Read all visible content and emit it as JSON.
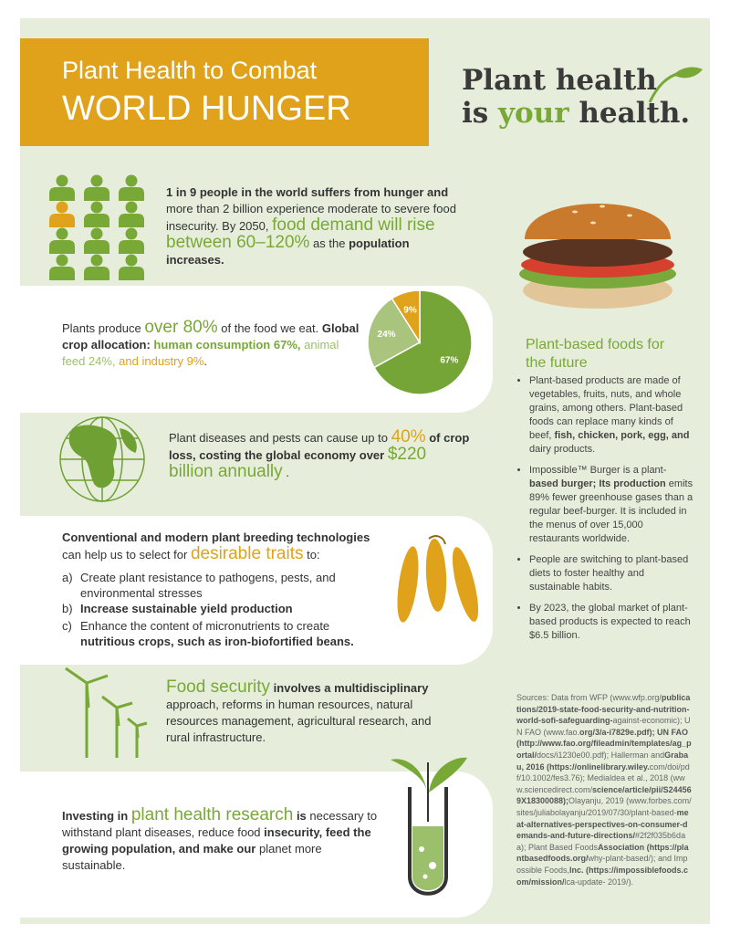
{
  "header": {
    "title_line1": "Plant Health to Combat",
    "title_line2": "WORLD HUNGER"
  },
  "logo": {
    "line1": "Plant health",
    "line2_start": "is ",
    "line2_highlight": "your",
    "line2_end": " health."
  },
  "hunger": [
    "1 in 9 people in the world suffers from hunger and",
    "more than 2 billion experience moderate to severe food insecurity. By 2050,",
    "food demand will rise between 60–120%",
    "as the",
    "population increases."
  ],
  "crops": {
    "text": [
      "Plants produce",
      "over 80%",
      "of the food we eat.",
      "Global crop allocation:",
      "human consumption 67%,",
      "animal feed 24%,",
      "and industry 9%",
      "."
    ],
    "pie": {
      "type": "pie",
      "values": [
        67,
        24,
        9
      ],
      "value_labels": [
        "67%",
        "24%",
        "9%"
      ],
      "colors": [
        "#76a537",
        "#a9c47d",
        "#e0a21b"
      ]
    }
  },
  "loss": [
    "Plant diseases and pests can cause up to",
    "40%",
    "of crop loss, costing the global economy over",
    "$220 billion annually",
    "."
  ],
  "breeding": {
    "intro": [
      "Conventional and modern plant breeding technologies",
      "can help us to select for",
      "desirable traits",
      "to:"
    ],
    "items": [
      {
        "marker": "a)",
        "parts": [
          "Create plant resistance to pathogens, pests, and environmental stresses"
        ]
      },
      {
        "marker": "b)",
        "parts": [
          "Increase sustainable yield production"
        ]
      },
      {
        "marker": "c)",
        "parts": [
          "Enhance the content of micronutrients to create",
          "nutritious crops, such as iron-biofortified beans."
        ]
      }
    ]
  },
  "security": [
    "Food security",
    "involves a multidisciplinary",
    "approach, reforms in human resources, natural resources management, agricultural research, and rural infrastructure."
  ],
  "research": [
    "Investing in",
    "plant health research",
    "is",
    "necessary to withstand plant diseases, reduce food",
    "insecurity, feed the growing population, and make our",
    "planet more sustainable."
  ],
  "sidebar": {
    "heading": "Plant-based foods for the future",
    "bullets": [
      [
        "Plant-based products are made of vegetables, fruits, nuts, and whole grains, among others. Plant-based foods can replace many kinds of beef,",
        "fish, chicken, pork, egg, and",
        "dairy products."
      ],
      [
        "Impossible™ Burger is a plant-",
        "based burger; Its production",
        "emits 89% fewer greenhouse gases than a regular beef-burger. It is included in the menus of over 15,000 restaurants worldwide."
      ],
      [
        "People are switching to plant-based diets to foster healthy and sustainable habits."
      ],
      [
        "By 2023, the global market of plant-based products is expected to reach $6.5 billion."
      ]
    ]
  },
  "sources": [
    "Sources: Data from WFP (www.wfp.org/",
    "publications/2019-state-food-security-and-nutrition-world-sofi-safeguarding-",
    "against-economic); UN FAO (www.fao.",
    "org/3/a-i7829e.pdf); UN FAO (http://www.fao.org/fileadmin/templates/ag_portal/",
    "docs/i1230e00.pdf); Hallerman and",
    "Grabau, 2016 (https://onlinelibrary.wiley.",
    "com/doi/pdf/10.1002/fes3.76); Medialdea et al., 2018 (www.sciencedirect.com/",
    "science/article/pii/S244569X18300088);",
    "Olayanju, 2019 (www.forbes.com/sites/juliabolayanju/2019/07/30/plant-based-",
    "meat-alternatives-perspectives-on-consumer-demands-and-future-directions/",
    "#2f2f035b6daa); Plant Based Foods",
    "Association (https://plantbasedfoods.org/",
    "why-plant-based/); and Impossible Foods,",
    "Inc. (https://impossiblefoods.com/mission/",
    "lca-update- 2019/)."
  ]
}
